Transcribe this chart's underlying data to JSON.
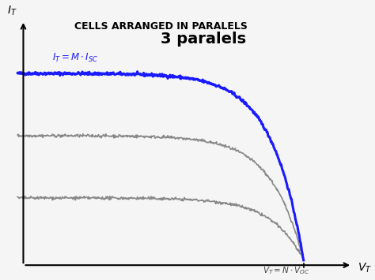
{
  "title": "CELLS ARRANGED IN PARALELS",
  "annotation_top": "3 paralels",
  "label_it": "$I_T$",
  "label_vt": "$V_T$",
  "label_formula_top": "$I_T = M \\cdot I_{SC}$",
  "label_voc": "$V_T = N \\cdot V_{OC}$",
  "bg_color": "#f5f5f5",
  "curve_color_top": "#1a1aff",
  "curve_color_mid": "#888888",
  "curve_color_bot": "#888888",
  "title_fontsize": 9,
  "annotation_fontsize": 14
}
